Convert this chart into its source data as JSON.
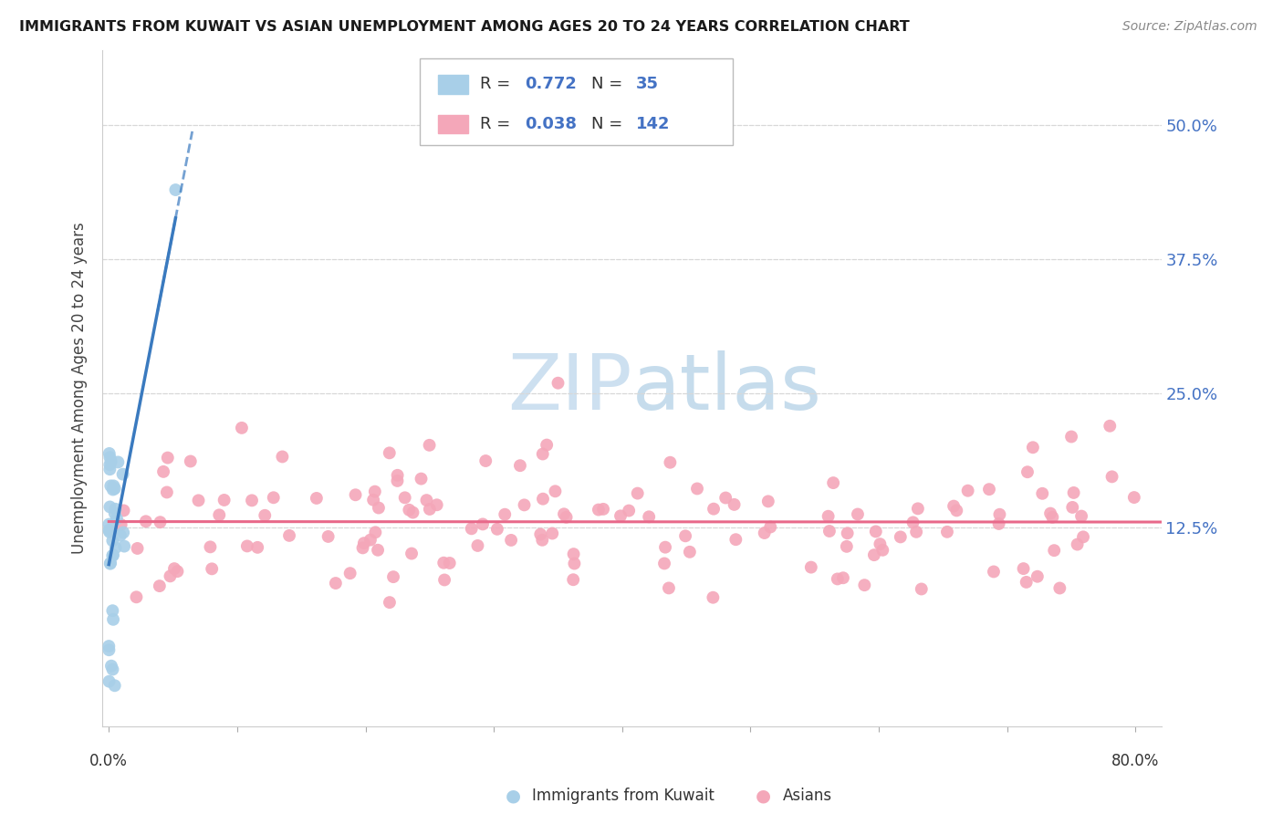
{
  "title": "IMMIGRANTS FROM KUWAIT VS ASIAN UNEMPLOYMENT AMONG AGES 20 TO 24 YEARS CORRELATION CHART",
  "source": "Source: ZipAtlas.com",
  "ylabel": "Unemployment Among Ages 20 to 24 years",
  "ytick_labels": [
    "50.0%",
    "37.5%",
    "25.0%",
    "12.5%"
  ],
  "ytick_values": [
    0.5,
    0.375,
    0.25,
    0.125
  ],
  "xlim": [
    -0.005,
    0.82
  ],
  "ylim": [
    -0.06,
    0.57
  ],
  "color_blue": "#a8cfe8",
  "color_pink": "#f4a7b9",
  "color_blue_line": "#3a7abf",
  "color_pink_line": "#e8698a",
  "grid_color": "#d8d8d8",
  "watermark_color": "#cde0f0",
  "title_color": "#1a1a1a",
  "source_color": "#888888",
  "axis_label_color": "#444444",
  "tick_label_color": "#4472c4",
  "legend_text_color": "#333333",
  "legend_value_color": "#4472c4"
}
